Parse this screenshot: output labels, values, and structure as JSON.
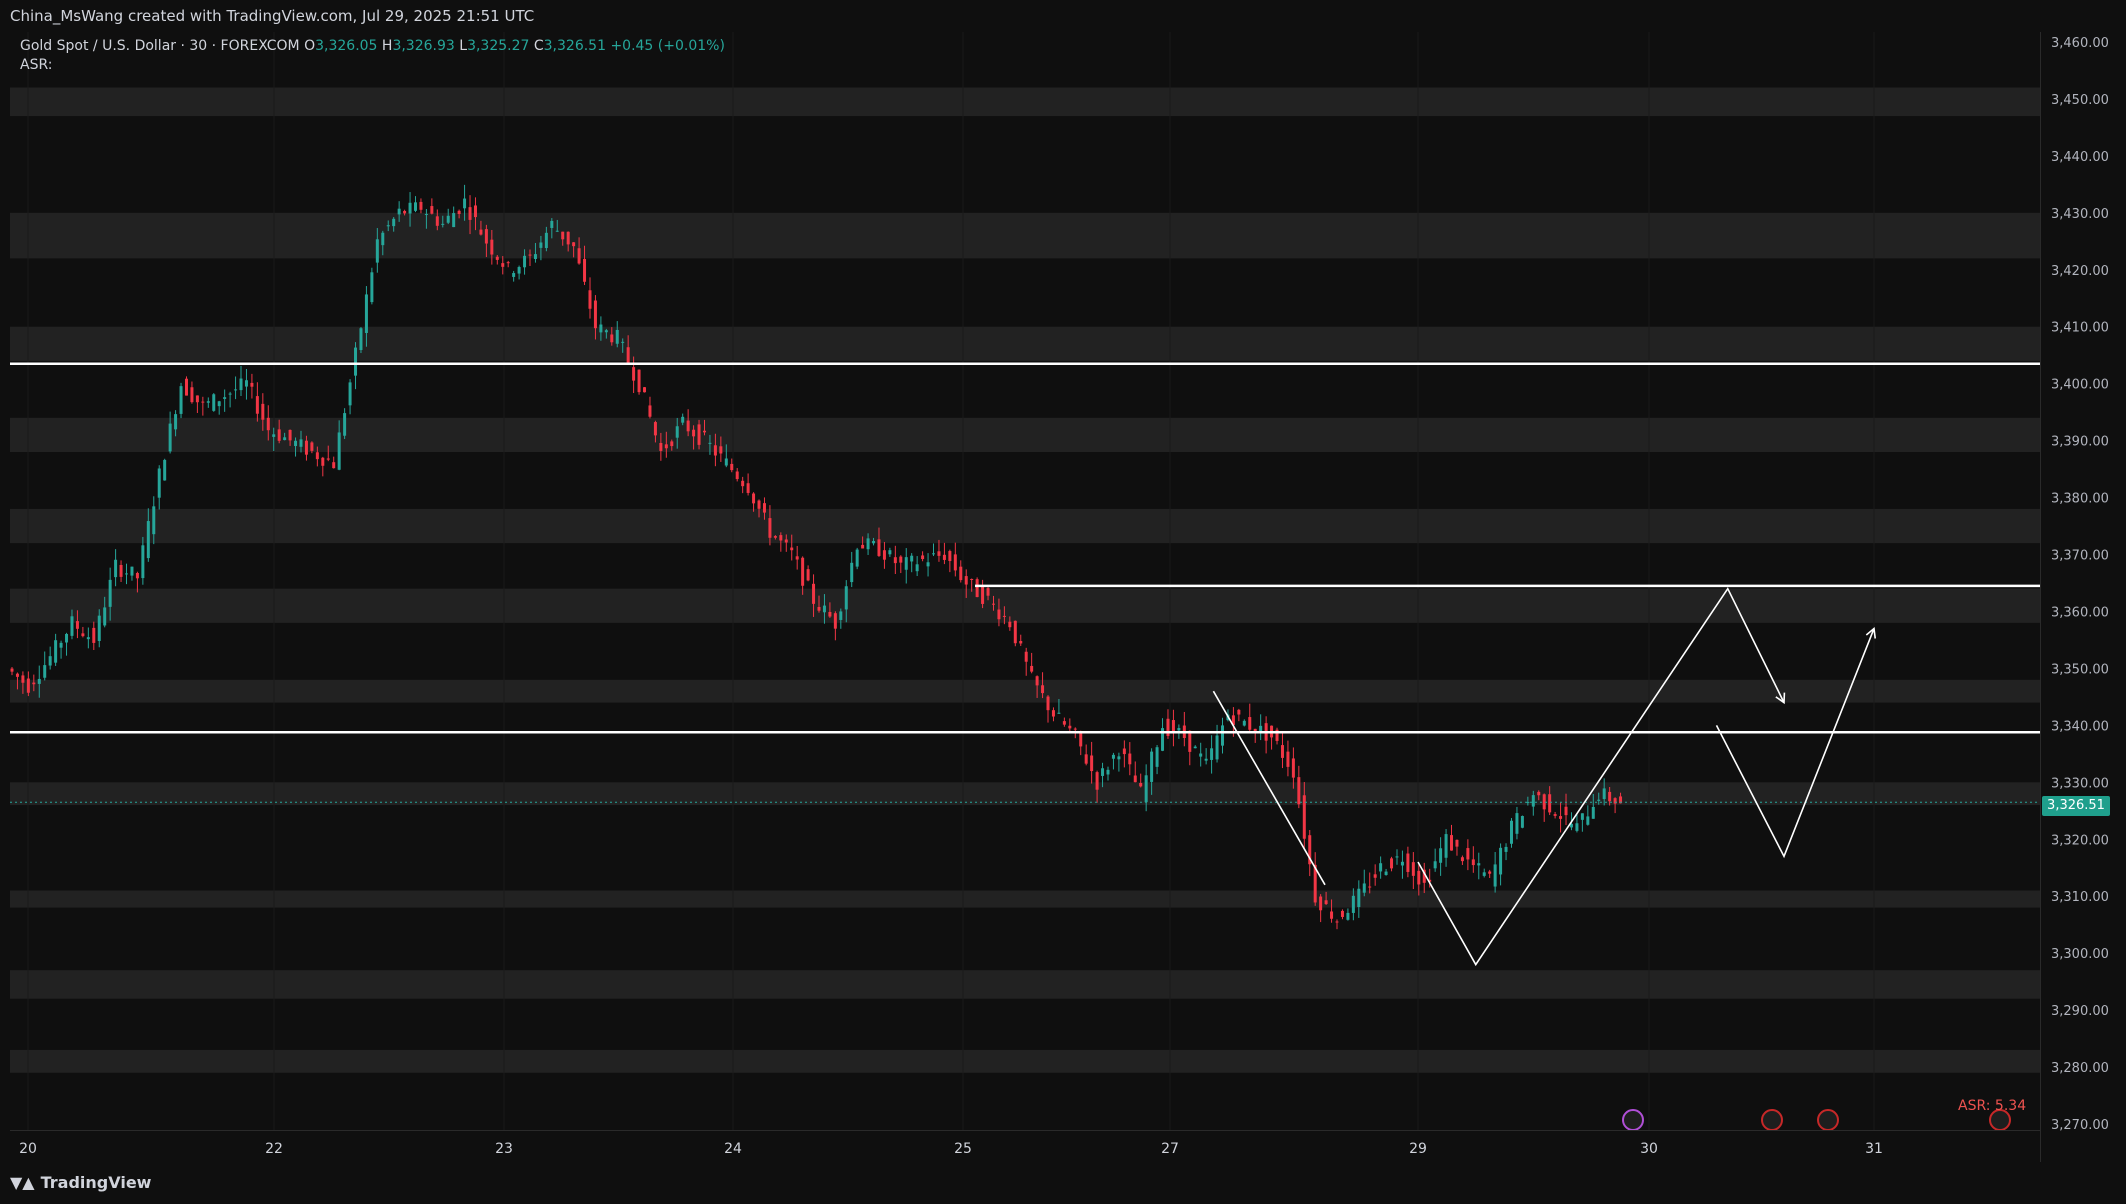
{
  "header": {
    "credit": "China_MsWang created with TradingView.com, Jul 29, 2025 21:51 UTC"
  },
  "legend": {
    "symbol": "Gold Spot / U.S. Dollar · 30 · FOREXCOM",
    "o_label": "O",
    "o_value": "3,326.05",
    "h_label": "H",
    "h_value": "3,326.93",
    "l_label": "L",
    "l_value": "3,325.27",
    "c_label": "C",
    "c_value": "3,326.51",
    "change": "+0.45 (+0.01%)",
    "asr_label": "ASR:"
  },
  "last_price": "3,326.51",
  "asr_right": "ASR: 5.34",
  "brand": "TradingView",
  "colors": {
    "up": "#26a69a",
    "down": "#f23645",
    "band": "#2a2a2a",
    "background": "#0f0f0f",
    "level_line": "#ffffff",
    "badge": "#1f9f8c"
  },
  "price_axis": {
    "min": 3270,
    "max": 3460,
    "ticks": [
      "3,460.00",
      "3,450.00",
      "3,440.00",
      "3,430.00",
      "3,420.00",
      "3,410.00",
      "3,400.00",
      "3,390.00",
      "3,380.00",
      "3,370.00",
      "3,360.00",
      "3,350.00",
      "3,340.00",
      "3,330.00",
      "3,320.00",
      "3,310.00",
      "3,300.00",
      "3,290.00",
      "3,280.00",
      "3,270.00"
    ]
  },
  "time_axis": {
    "labels": [
      "20",
      "22",
      "23",
      "24",
      "25",
      "27",
      "29",
      "30",
      "31"
    ]
  },
  "chart_data": {
    "type": "candlestick",
    "symbol": "XAUUSD",
    "interval": "30",
    "ylim": [
      3270,
      3460
    ],
    "x_day_markers": [
      "20",
      "22",
      "23",
      "24",
      "25",
      "27",
      "29",
      "30",
      "31"
    ],
    "horizontal_levels": [
      3403.5,
      3364.5,
      3338.8
    ],
    "price_bands": [
      [
        3447,
        3452
      ],
      [
        3422,
        3430
      ],
      [
        3404,
        3410
      ],
      [
        3388,
        3394
      ],
      [
        3372,
        3378
      ],
      [
        3358,
        3364
      ],
      [
        3344,
        3348
      ],
      [
        3326,
        3330
      ],
      [
        3308,
        3311
      ],
      [
        3292,
        3297
      ],
      [
        3279,
        3283
      ]
    ],
    "close_path": [
      3350,
      3347,
      3352,
      3358,
      3355,
      3368,
      3366,
      3384,
      3400,
      3396,
      3398,
      3400,
      3392,
      3390,
      3388,
      3386,
      3405,
      3425,
      3430,
      3431,
      3428,
      3432,
      3425,
      3420,
      3422,
      3428,
      3424,
      3410,
      3408,
      3400,
      3388,
      3393,
      3390,
      3386,
      3382,
      3374,
      3370,
      3362,
      3358,
      3372,
      3371,
      3368,
      3369,
      3370,
      3365,
      3362,
      3358,
      3348,
      3342,
      3338,
      3330,
      3336,
      3328,
      3340,
      3338,
      3333,
      3342,
      3340,
      3338,
      3332,
      3310,
      3306,
      3310,
      3315,
      3317,
      3312,
      3320,
      3316,
      3313,
      3322,
      3328,
      3325,
      3322,
      3328,
      3326.51
    ],
    "projection_path_a": [
      [
        29.0,
        3316
      ],
      [
        29.25,
        3298
      ],
      [
        30.35,
        3364
      ],
      [
        30.6,
        3344
      ]
    ],
    "projection_path_b": [
      [
        30.3,
        3340
      ],
      [
        30.6,
        3317
      ],
      [
        31.1,
        3357
      ]
    ],
    "pattern_line": [
      [
        27.35,
        3346
      ],
      [
        28.25,
        3312
      ]
    ]
  }
}
